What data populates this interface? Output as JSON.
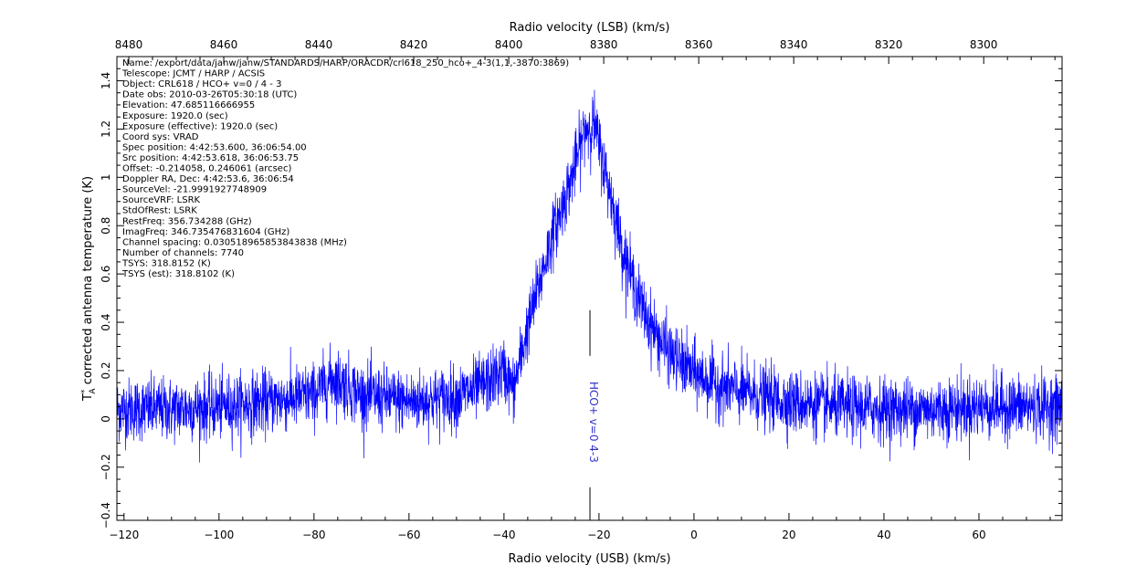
{
  "chart_data": {
    "type": "line",
    "title": "",
    "xlabel": "Radio velocity (USB) (km/s)",
    "xlabel_top": "Radio velocity (LSB) (km/s)",
    "ylabel": "corrected antenna temperature (K)",
    "ylabel_symbol": "T",
    "ylabel_sup": "*",
    "ylabel_sub": "A",
    "xlim": [
      -121.5,
      77.5
    ],
    "ylim": [
      -0.42,
      1.5
    ],
    "xlim_top": [
      8482.5,
      8283.5
    ],
    "grid": false,
    "x_ticks": [
      -120,
      -100,
      -80,
      -60,
      -40,
      -20,
      0,
      20,
      40,
      60
    ],
    "x_tick_labels": [
      "−120",
      "−100",
      "−80",
      "−60",
      "−40",
      "−20",
      "0",
      "20",
      "40",
      "60"
    ],
    "x_top_ticks": [
      8480,
      8460,
      8440,
      8420,
      8400,
      8380,
      8360,
      8340,
      8320,
      8300
    ],
    "x_top_tick_labels": [
      "8480",
      "8460",
      "8440",
      "8420",
      "8400",
      "8380",
      "8360",
      "8340",
      "8320",
      "8300"
    ],
    "y_ticks": [
      -0.4,
      -0.2,
      0,
      0.2,
      0.4,
      0.6,
      0.8,
      1,
      1.2,
      1.4
    ],
    "y_tick_labels": [
      "−0.4",
      "−0.2",
      "0",
      "0.2",
      "0.4",
      "0.6",
      "0.8",
      "1",
      "1.2",
      "1.4"
    ],
    "series": [
      {
        "color": "#0000ff",
        "profile": {
          "x": [
            -121,
            -110,
            -100,
            -90,
            -80,
            -76,
            -70,
            -60,
            -50,
            -45,
            -40,
            -38,
            -35,
            -30,
            -27,
            -25,
            -23,
            -21,
            -19,
            -17,
            -15,
            -12,
            -10,
            -7,
            -4,
            0,
            5,
            10,
            20,
            30,
            40,
            50,
            60,
            70,
            77
          ],
          "y": [
            0.04,
            0.04,
            0.05,
            0.07,
            0.1,
            0.17,
            0.1,
            0.07,
            0.09,
            0.13,
            0.2,
            0.12,
            0.38,
            0.75,
            0.92,
            1.05,
            1.2,
            1.22,
            1.05,
            0.88,
            0.7,
            0.52,
            0.42,
            0.32,
            0.25,
            0.19,
            0.14,
            0.11,
            0.07,
            0.05,
            0.04,
            0.04,
            0.05,
            0.05,
            0.05
          ]
        },
        "noise_sigma_k": 0.065
      }
    ],
    "annotations": [
      {
        "label": "HCO+ v=0 4-3",
        "x": -21.9,
        "y_top": 0.45,
        "color": "#3333cc"
      }
    ]
  },
  "info": [
    "Name: /export/data/janw/janw/STANDARDS/HARP/ORACDR/crl618_250_hco+_4-3(1,1,-3870:3869)",
    "Telescope: JCMT / HARP / ACSIS",
    "Object: CRL618 / HCO+ v=0 / 4 - 3",
    "Date obs: 2010-03-26T05:30:18 (UTC)",
    "Elevation: 47.685116666955",
    "Exposure: 1920.0 (sec)",
    "Exposure (effective): 1920.0 (sec)",
    "Coord sys: VRAD",
    "Spec position: 4:42:53.600, 36:06:54.00",
    "Src position: 4:42:53.618, 36:06:53.75",
    "Offset: -0.214058, 0.246061 (arcsec)",
    "Doppler RA, Dec: 4:42:53.6, 36:06:54",
    "SourceVel: -21.9991927748909",
    "SourceVRF: LSRK",
    "StdOfRest: LSRK",
    "RestFreq: 356.734288 (GHz)",
    "ImagFreq: 346.735476831604 (GHz)",
    "Channel spacing: 0.030518965853843838 (MHz)",
    "Number of channels: 7740",
    "TSYS: 318.8152 (K)",
    "TSYS (est): 318.8102 (K)"
  ]
}
